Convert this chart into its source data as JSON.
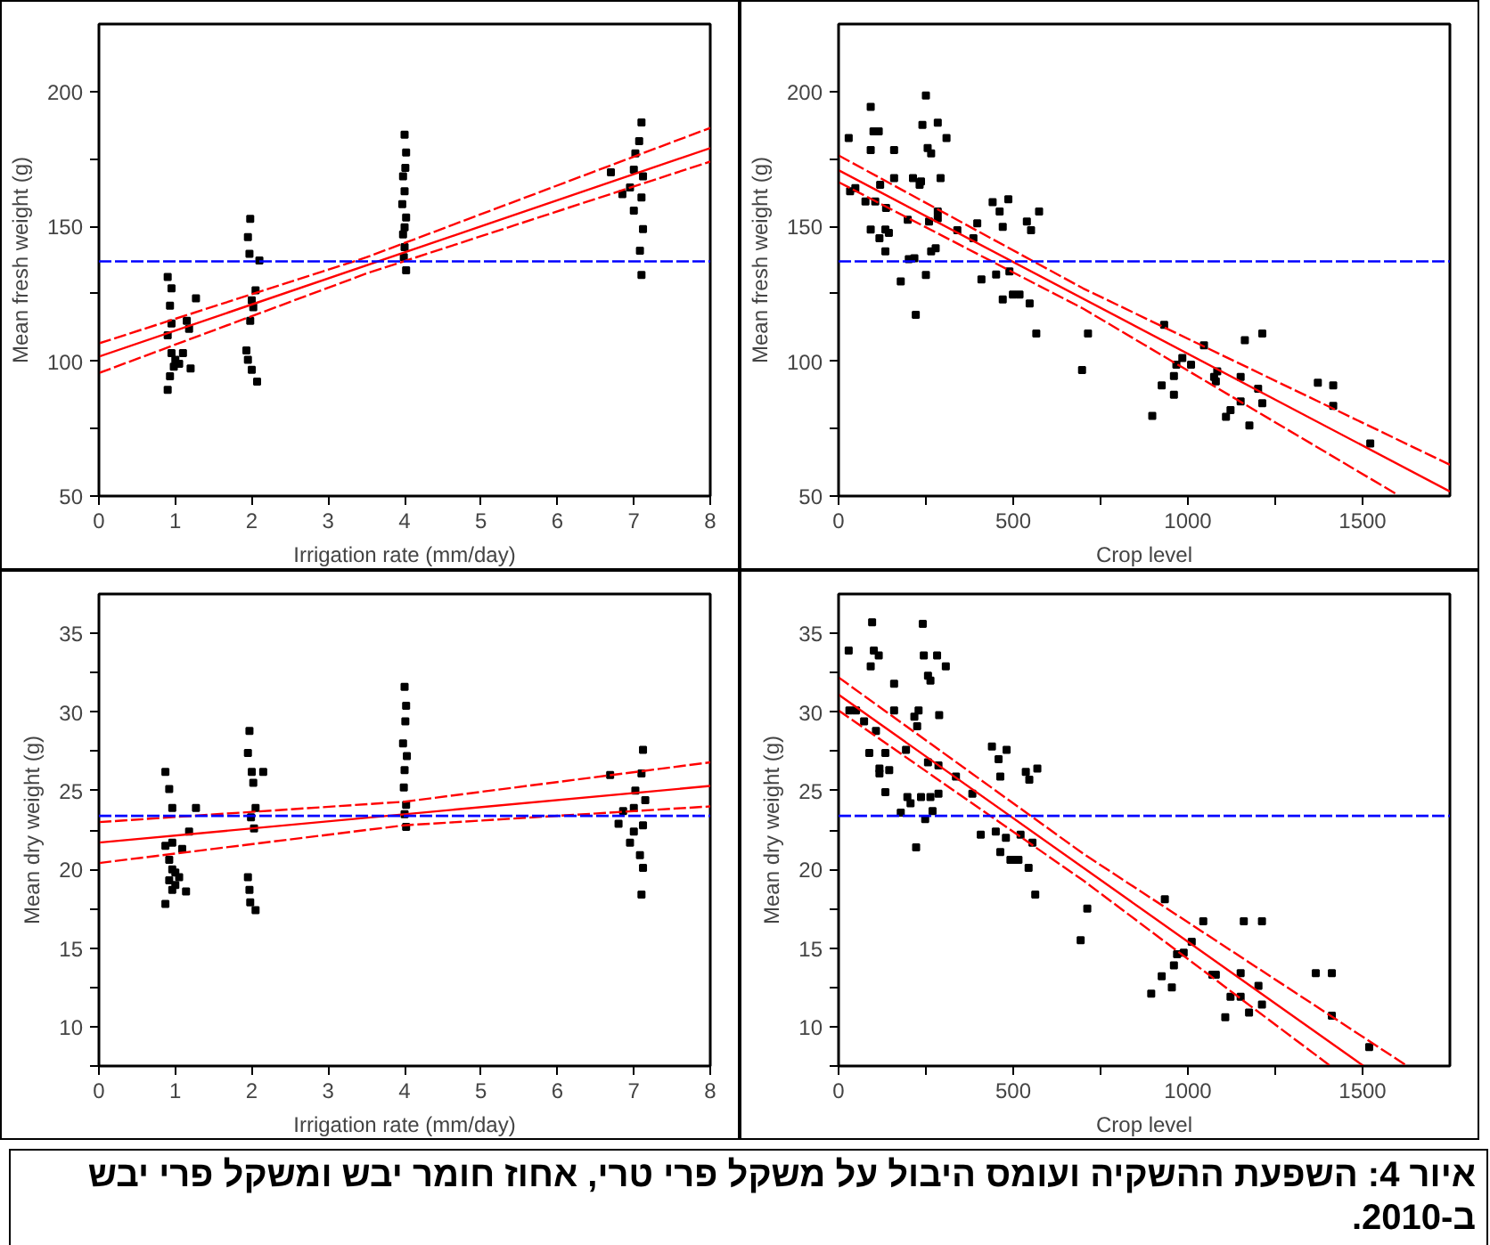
{
  "chart_data": [
    {
      "type": "scatter",
      "xlabel": "Irrigation rate (mm/day)",
      "ylabel": "Mean fresh weight (g)",
      "xlim": [
        0,
        8
      ],
      "ylim": [
        50,
        225
      ],
      "xticks": [
        0,
        1,
        2,
        3,
        4,
        5,
        6,
        7,
        8
      ],
      "yticks": [
        50,
        {
          "value": 75,
          "label": null
        },
        100,
        {
          "value": 125,
          "label": null
        },
        150,
        {
          "value": 175,
          "label": null
        },
        200
      ],
      "grid": false,
      "marker": "square",
      "ref_lines": [
        {
          "axis": "y",
          "value": 137,
          "color": "#0000ff",
          "line_style": "dashed"
        }
      ],
      "series": [
        {
          "type": "scatter",
          "color": "#000000",
          "x": [
            0.9,
            0.95,
            0.93,
            0.95,
            0.9,
            0.95,
            1.0,
            0.98,
            0.93,
            0.9,
            1.27,
            1.15,
            1.18,
            1.2,
            1.1,
            1.05,
            1.98,
            1.95,
            1.97,
            2.1,
            2.05,
            2.0,
            2.02,
            1.98,
            1.93,
            1.95,
            2.0,
            2.07,
            4.0,
            4.02,
            4.01,
            3.98,
            4.0,
            3.97,
            4.02,
            4.0,
            3.98,
            4.0,
            3.99,
            4.02,
            7.1,
            7.07,
            7.02,
            7.0,
            7.12,
            6.95,
            7.1,
            7.0,
            7.12,
            7.08,
            7.1,
            6.7,
            6.85
          ],
          "values": [
            131.2,
            127,
            120.6,
            114,
            109.6,
            103,
            100.5,
            98,
            94.4,
            89.4,
            123.3,
            115,
            112,
            97.3,
            103,
            99,
            152.8,
            146,
            139.8,
            137.3,
            126.3,
            122.6,
            120,
            115,
            104,
            100.5,
            96.8,
            92.4,
            184,
            177.4,
            171.7,
            168.5,
            163,
            158.2,
            153.3,
            149.6,
            147,
            142.3,
            138.6,
            133.7,
            188.5,
            181.6,
            177,
            171,
            168.5,
            164.4,
            160.7,
            155.8,
            149,
            141,
            132,
            170,
            161.9
          ]
        },
        {
          "type": "line",
          "color": "#ff0000",
          "marker": "none",
          "line_style": "solid",
          "x": [
            0,
            8
          ],
          "values": [
            101.7,
            179
          ]
        },
        {
          "type": "line",
          "color": "#ff0000",
          "marker": "none",
          "line_style": "dashed",
          "x": [
            0,
            3.5,
            8
          ],
          "values": [
            106.6,
            138.5,
            186.5
          ]
        },
        {
          "type": "line",
          "color": "#ff0000",
          "marker": "none",
          "line_style": "dashed",
          "x": [
            0,
            3.5,
            8
          ],
          "values": [
            95.6,
            132.5,
            174
          ]
        }
      ]
    },
    {
      "type": "scatter",
      "xlabel": "Crop level",
      "ylabel": "Mean fresh weight (g)",
      "xlim": [
        0,
        1750
      ],
      "ylim": [
        50,
        225
      ],
      "xticks": [
        0,
        {
          "value": 250,
          "label": null
        },
        500,
        {
          "value": 750,
          "label": null
        },
        1000,
        {
          "value": 1250,
          "label": null
        },
        1500
      ],
      "yticks": [
        50,
        {
          "value": 75,
          "label": null
        },
        100,
        {
          "value": 125,
          "label": null
        },
        150,
        {
          "value": 175,
          "label": null
        },
        200
      ],
      "grid": false,
      "marker": "square",
      "ref_lines": [
        {
          "axis": "y",
          "value": 137,
          "color": "#0000ff",
          "line_style": "dashed"
        }
      ],
      "series": [
        {
          "type": "scatter",
          "color": "#000000",
          "x": [
            29,
            33,
            48,
            77,
            92,
            92,
            100,
            115,
            105,
            119,
            92,
            117,
            136,
            134,
            144,
            134,
            159,
            159,
            178,
            198,
            201,
            213,
            221,
            217,
            232,
            236,
            240,
            250,
            250,
            255,
            265,
            259,
            265,
            278,
            284,
            292,
            284,
            284,
            309,
            340,
            397,
            386,
            409,
            441,
            461,
            470,
            486,
            451,
            470,
            489,
            499,
            518,
            547,
            539,
            551,
            574,
            566,
            697,
            714,
            898,
            925,
            932,
            960,
            960,
            967,
            984,
            1009,
            1046,
            1075,
            1084,
            1080,
            1109,
            1122,
            1151,
            1151,
            1163,
            1176,
            1213,
            1213,
            1201,
            1372,
            1416,
            1416,
            1522
          ],
          "values": [
            182.7,
            163,
            164.2,
            159.2,
            194.3,
            178.3,
            185.2,
            185.2,
            159.2,
            165.4,
            148.8,
            145.6,
            156.8,
            148.8,
            147.6,
            140.7,
            178.3,
            167.9,
            129.6,
            152.4,
            137.8,
            167.9,
            117.2,
            138.2,
            165.4,
            166.6,
            187.6,
            198.5,
            132,
            179,
            177,
            151.8,
            140.7,
            141.9,
            188.4,
            167.9,
            155.5,
            153,
            182.7,
            148.6,
            151.1,
            145.6,
            130.3,
            159,
            155.5,
            149.8,
            160,
            132.1,
            122.9,
            133.3,
            124.7,
            124.7,
            121.4,
            151.8,
            148.6,
            155.5,
            110.3,
            96.7,
            110.3,
            79.7,
            91,
            113.5,
            94.5,
            87.6,
            98.7,
            101.2,
            98.7,
            105.9,
            94.2,
            96.2,
            92.5,
            79.4,
            81.9,
            85.1,
            94.2,
            107.8,
            76.2,
            110.3,
            84.4,
            89.8,
            92,
            91,
            83.4,
            69.5
          ]
        },
        {
          "type": "line",
          "color": "#ff0000",
          "marker": "none",
          "line_style": "solid",
          "x": [
            0,
            1750
          ],
          "values": [
            170.8,
            51.7
          ]
        },
        {
          "type": "line",
          "color": "#ff0000",
          "marker": "none",
          "line_style": "dashed",
          "x": [
            0,
            700,
            1750
          ],
          "values": [
            176.3,
            127,
            61.6
          ]
        },
        {
          "type": "line",
          "color": "#ff0000",
          "marker": "none",
          "line_style": "dashed",
          "x": [
            0,
            700,
            1600
          ],
          "values": [
            166.4,
            119.5,
            50.5
          ]
        }
      ]
    },
    {
      "type": "scatter",
      "xlabel": "Irrigation rate (mm/day)",
      "ylabel": "Mean dry weight (g)",
      "xlim": [
        0,
        8
      ],
      "ylim": [
        7.5,
        37.5
      ],
      "xticks": [
        0,
        1,
        2,
        3,
        4,
        5,
        6,
        7,
        8
      ],
      "yticks": [
        {
          "value": 7.5,
          "label": null
        },
        10,
        {
          "value": 12.5,
          "label": null
        },
        15,
        {
          "value": 17.5,
          "label": null
        },
        20,
        {
          "value": 22.5,
          "label": null
        },
        25,
        {
          "value": 27.5,
          "label": null
        },
        30,
        {
          "value": 32.5,
          "label": null
        },
        35
      ],
      "grid": false,
      "marker": "square",
      "ref_lines": [
        {
          "axis": "y",
          "value": 23.4,
          "color": "#0000ff",
          "line_style": "dashed"
        }
      ],
      "series": [
        {
          "type": "scatter",
          "color": "#000000",
          "x": [
            0.87,
            0.92,
            0.96,
            0.96,
            0.87,
            0.92,
            0.96,
            1.0,
            0.92,
            1.0,
            0.96,
            0.87,
            1.27,
            1.18,
            1.09,
            1.05,
            1.14,
            1.97,
            1.95,
            2.0,
            2.02,
            2.05,
            1.99,
            2.03,
            1.95,
            1.97,
            1.98,
            2.05,
            2.15,
            4.0,
            4.02,
            4.01,
            3.98,
            4.03,
            4.0,
            3.99,
            4.02,
            4.0,
            4.02,
            7.12,
            7.1,
            7.02,
            7.15,
            7.0,
            6.86,
            7.12,
            7.0,
            6.95,
            7.08,
            7.12,
            7.1,
            6.69,
            6.8
          ],
          "values": [
            26.2,
            25.1,
            23.9,
            21.7,
            21.5,
            20.6,
            20,
            19.8,
            19.3,
            19,
            18.7,
            17.8,
            23.9,
            22.4,
            21.3,
            19.5,
            18.6,
            28.8,
            27.4,
            26.2,
            25.5,
            23.9,
            23.3,
            22.6,
            19.5,
            18.7,
            17.9,
            17.4,
            26.2,
            31.6,
            30.4,
            29.4,
            28,
            27.2,
            26.3,
            25.2,
            24.1,
            23.5,
            22.7,
            27.6,
            26.1,
            25,
            24.4,
            23.9,
            23.7,
            22.8,
            22.4,
            21.7,
            20.9,
            20.1,
            18.4,
            26,
            22.9
          ]
        },
        {
          "type": "line",
          "color": "#ff0000",
          "marker": "none",
          "line_style": "solid",
          "x": [
            0,
            8
          ],
          "values": [
            21.7,
            25.3
          ]
        },
        {
          "type": "line",
          "color": "#ff0000",
          "marker": "none",
          "line_style": "dashed",
          "x": [
            0,
            4,
            8
          ],
          "values": [
            23.0,
            24.3,
            26.8
          ]
        },
        {
          "type": "line",
          "color": "#ff0000",
          "marker": "none",
          "line_style": "dashed",
          "x": [
            0,
            4,
            8
          ],
          "values": [
            20.4,
            22.8,
            24.0
          ]
        }
      ]
    },
    {
      "type": "scatter",
      "xlabel": "Crop level",
      "ylabel": "Mean dry weight (g)",
      "xlim": [
        0,
        1750
      ],
      "ylim": [
        7.5,
        37.5
      ],
      "xticks": [
        0,
        {
          "value": 250,
          "label": null
        },
        500,
        {
          "value": 750,
          "label": null
        },
        1000,
        {
          "value": 1250,
          "label": null
        },
        1500
      ],
      "yticks": [
        {
          "value": 7.5,
          "label": null
        },
        10,
        {
          "value": 12.5,
          "label": null
        },
        15,
        {
          "value": 17.5,
          "label": null
        },
        20,
        {
          "value": 22.5,
          "label": null
        },
        25,
        {
          "value": 27.5,
          "label": null
        },
        30,
        {
          "value": 32.5,
          "label": null
        },
        35
      ],
      "grid": false,
      "marker": "square",
      "ref_lines": [
        {
          "axis": "y",
          "value": 23.4,
          "color": "#0000ff",
          "line_style": "dashed"
        }
      ],
      "annotations": [
        "איור 4: השפעת ההשקיה ועומס היבול על משקל פרי טרי, אחוז חומר יבש ומשקל פרי יבש ב-2010."
      ],
      "series": [
        {
          "type": "scatter",
          "color": "#000000",
          "x": [
            29,
            31,
            50,
            73,
            88,
            92,
            96,
            101,
            115,
            107,
            117,
            117,
            134,
            134,
            145,
            159,
            159,
            178,
            193,
            197,
            206,
            217,
            222,
            225,
            229,
            236,
            241,
            244,
            248,
            256,
            256,
            263,
            269,
            263,
            282,
            286,
            288,
            307,
            286,
            336,
            383,
            407,
            439,
            458,
            481,
            463,
            450,
            463,
            479,
            492,
            501,
            515,
            521,
            536,
            546,
            555,
            569,
            544,
            563,
            693,
            712,
            895,
            925,
            934,
            954,
            960,
            969,
            988,
            1011,
            1044,
            1070,
            1080,
            1107,
            1122,
            1151,
            1151,
            1160,
            1175,
            1212,
            1212,
            1202,
            1366,
            1412,
            1412,
            1519
          ],
          "values": [
            33.9,
            30.1,
            30.1,
            29.4,
            27.4,
            32.9,
            35.7,
            33.9,
            33.6,
            28.8,
            26.4,
            26.1,
            24.9,
            27.4,
            26.3,
            31.8,
            30.1,
            23.6,
            27.6,
            24.6,
            24.2,
            29.7,
            21.4,
            29.1,
            30.1,
            24.6,
            35.6,
            33.6,
            23.2,
            26.8,
            32.3,
            24.6,
            23.7,
            32,
            33.6,
            26.6,
            29.8,
            32.9,
            24.8,
            25.9,
            24.8,
            22.2,
            27.8,
            27,
            27.6,
            25.9,
            22.4,
            21.1,
            22,
            20.6,
            20.6,
            20.6,
            22.2,
            26.2,
            25.7,
            21.7,
            26.4,
            20.1,
            18.4,
            15.5,
            17.5,
            12.1,
            13.2,
            18.1,
            12.5,
            13.9,
            14.6,
            14.7,
            15.4,
            16.7,
            13.3,
            13.3,
            10.6,
            11.9,
            11.9,
            13.4,
            16.7,
            10.9,
            16.7,
            11.4,
            12.6,
            13.4,
            13.4,
            10.7,
            8.7
          ]
        },
        {
          "type": "line",
          "color": "#ff0000",
          "marker": "none",
          "line_style": "solid",
          "x": [
            0,
            1503
          ],
          "values": [
            31.1,
            7.5
          ]
        },
        {
          "type": "line",
          "color": "#ff0000",
          "marker": "none",
          "line_style": "dashed",
          "x": [
            0,
            700,
            1628
          ],
          "values": [
            32.2,
            21.0,
            7.5
          ]
        },
        {
          "type": "line",
          "color": "#ff0000",
          "marker": "none",
          "line_style": "dashed",
          "x": [
            0,
            700,
            1408
          ],
          "values": [
            30.1,
            19.3,
            7.5
          ]
        }
      ]
    }
  ]
}
